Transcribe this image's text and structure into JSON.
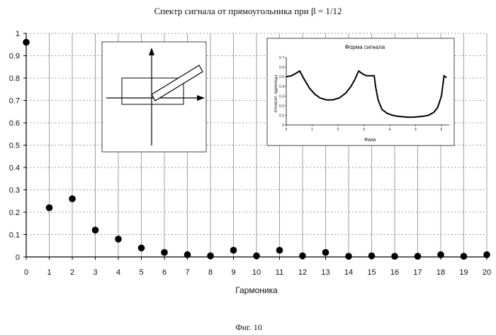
{
  "figure_caption": "Фиг. 10",
  "chart_data": [
    {
      "type": "scatter",
      "title": "Спектр сигнала от прямоугольника при β = 1/12",
      "xlabel": "Гармоника",
      "ylabel": "",
      "xlim": [
        0,
        20
      ],
      "ylim": [
        0,
        1
      ],
      "grid": true,
      "x": [
        0,
        1,
        2,
        3,
        4,
        5,
        6,
        7,
        8,
        9,
        10,
        11,
        12,
        13,
        14,
        15,
        16,
        17,
        18,
        19,
        20
      ],
      "values": [
        0.96,
        0.22,
        0.26,
        0.12,
        0.08,
        0.04,
        0.02,
        0.01,
        0.005,
        0.03,
        0.005,
        0.03,
        0.005,
        0.02,
        0.003,
        0.005,
        0.003,
        0.003,
        0.01,
        0.003,
        0.01
      ],
      "x_tick_labels": [
        "0",
        "1",
        "2",
        "3",
        "4",
        "5",
        "6",
        "7",
        "8",
        "9",
        "10",
        "11",
        "12",
        "13",
        "14",
        "15",
        "16",
        "17",
        "18",
        "19",
        "20"
      ],
      "y_tick_labels": [
        "0",
        "0.1",
        "0.2",
        "0.3",
        "0.4",
        "0.5",
        "0.6",
        "0.7",
        "0.8",
        "0.9",
        "1"
      ]
    },
    {
      "type": "line",
      "title": "Форма сигнала",
      "xlabel": "Фаза",
      "ylabel": "относит. единицы",
      "xlim": [
        0,
        6.3
      ],
      "ylim": [
        0,
        0.7
      ],
      "x_tick_labels": [
        "0",
        "1",
        "2",
        "3",
        "4",
        "5",
        "6"
      ],
      "y_tick_labels": [
        "0",
        "0.1",
        "0.2",
        "0.3",
        "0.4",
        "0.5",
        "0.6",
        "0.7"
      ],
      "x": [
        0.0,
        0.2,
        0.4,
        0.52,
        0.7,
        0.9,
        1.1,
        1.3,
        1.55,
        1.8,
        2.05,
        2.3,
        2.5,
        2.65,
        2.8,
        2.95,
        3.1,
        3.3,
        3.4,
        3.45,
        3.55,
        3.7,
        3.9,
        4.1,
        4.3,
        4.5,
        4.7,
        4.9,
        5.1,
        5.3,
        5.5,
        5.7,
        5.85,
        6.0,
        6.1,
        6.2
      ],
      "values": [
        0.5,
        0.51,
        0.54,
        0.56,
        0.47,
        0.38,
        0.32,
        0.28,
        0.26,
        0.26,
        0.28,
        0.33,
        0.4,
        0.47,
        0.56,
        0.53,
        0.51,
        0.51,
        0.51,
        0.4,
        0.26,
        0.16,
        0.12,
        0.1,
        0.09,
        0.085,
        0.08,
        0.08,
        0.085,
        0.09,
        0.1,
        0.13,
        0.18,
        0.3,
        0.51,
        0.49
      ]
    }
  ],
  "inset_diagram": {
    "description_icon": "rectangle-projection-diagram"
  }
}
